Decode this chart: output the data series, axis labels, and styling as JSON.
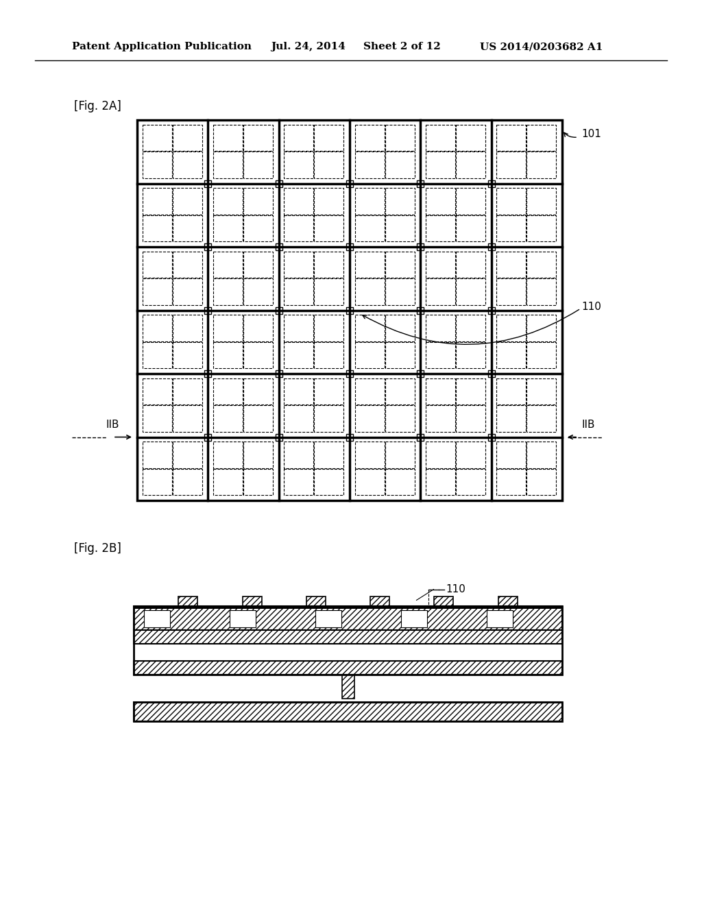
{
  "bg_color": "#ffffff",
  "header_text": "Patent Application Publication",
  "header_date": "Jul. 24, 2014",
  "header_sheet": "Sheet 2 of 12",
  "header_patent": "US 2014/0203682 A1",
  "fig2a_label": "[Fig. 2A]",
  "fig2b_label": "[Fig. 2B]",
  "label_101": "101",
  "label_110": "110",
  "label_110b": "110",
  "label_IIB_left": "IIB",
  "label_IIB_right": "IIB"
}
